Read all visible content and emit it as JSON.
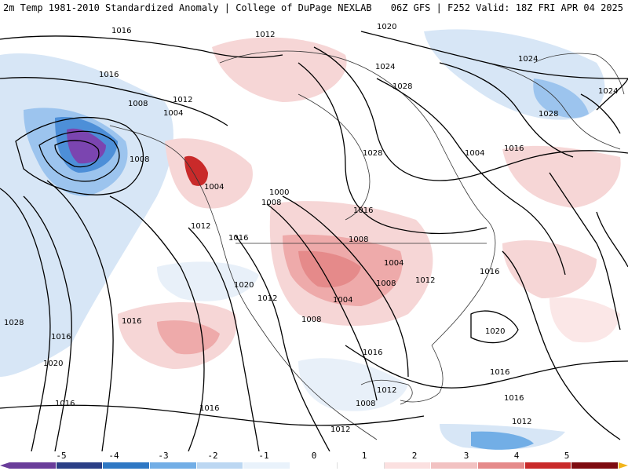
{
  "header": {
    "left": "2m Temp 1981-2010 Standardized Anomaly | College of DuPage NEXLAB",
    "right": "06Z GFS | F252 Valid: 18Z FRI APR 04 2025"
  },
  "map": {
    "isobar_labels": [
      "1016",
      "1012",
      "1020",
      "1024",
      "1028",
      "1024",
      "1028",
      "1024",
      "1016",
      "1008",
      "1012",
      "1004",
      "1008",
      "1004",
      "1016",
      "1028",
      "1000",
      "1008",
      "1012",
      "1016",
      "1008",
      "1004",
      "1012",
      "1016",
      "1020",
      "1012",
      "1004",
      "1008",
      "1008",
      "1016",
      "1016",
      "1028",
      "1020",
      "1016",
      "1016",
      "1016",
      "1012",
      "1008",
      "1020",
      "1016",
      "1012",
      "1016",
      "1012",
      "1016",
      "1004"
    ],
    "isobar_colors": {
      "line": "#000000",
      "coast": "#333333"
    }
  },
  "colorbar": {
    "labels": [
      "-5",
      "-4",
      "-3",
      "-2",
      "-1",
      "0",
      "1",
      "2",
      "3",
      "4",
      "5"
    ],
    "colors": [
      "#6a3d9a",
      "#2b3f86",
      "#2f78c4",
      "#72aee6",
      "#bcd7f2",
      "#ffffff",
      "#ffffff",
      "#f2c2c2",
      "#e58a8a",
      "#c92a2a",
      "#7e0b10"
    ],
    "low_cap_color": "#6a3d9a",
    "high_cap_color": "#f2b51c"
  }
}
